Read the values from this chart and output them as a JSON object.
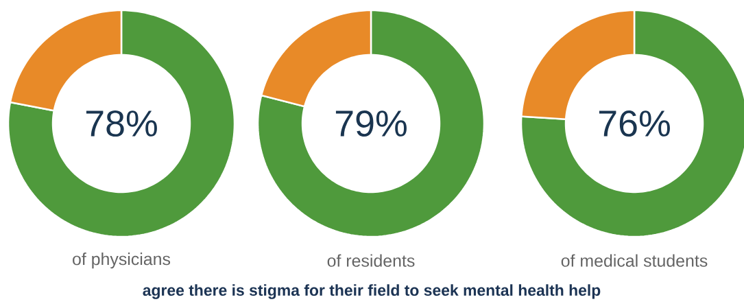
{
  "chart_data": [
    {
      "type": "donut",
      "categories": [
        null,
        null
      ],
      "values": [
        78,
        22
      ],
      "colors": [
        "#4f9a3c",
        "#e88a28"
      ],
      "value_labels": [
        "78%",
        null
      ],
      "xlabel": "of physicians",
      "annotations": [
        "agree there is stigma for their field to seek mental health help"
      ]
    },
    {
      "type": "donut",
      "categories": [
        null,
        null
      ],
      "values": [
        79,
        21
      ],
      "colors": [
        "#4f9a3c",
        "#e88a28"
      ],
      "value_labels": [
        "79%",
        null
      ],
      "xlabel": "of residents"
    },
    {
      "type": "donut",
      "categories": [
        null,
        null
      ],
      "values": [
        76,
        24
      ],
      "colors": [
        "#4f9a3c",
        "#e88a28"
      ],
      "value_labels": [
        "76%",
        null
      ],
      "xlabel": "of medical students"
    }
  ]
}
